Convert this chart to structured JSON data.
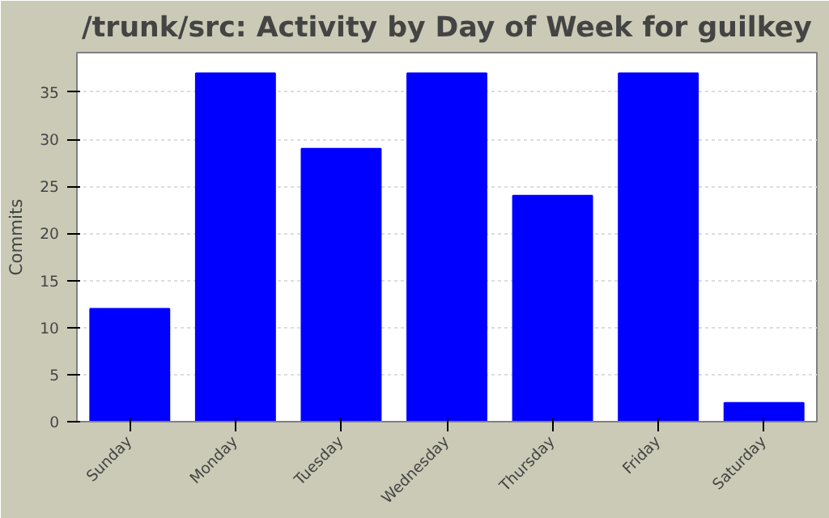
{
  "chart_data": {
    "type": "bar",
    "title": "/trunk/src: Activity by Day of Week for guilkey",
    "ylabel": "Commits",
    "categories": [
      "Sunday",
      "Monday",
      "Tuesday",
      "Wednesday",
      "Thursday",
      "Friday",
      "Saturday"
    ],
    "values": [
      12,
      37,
      29,
      37,
      24,
      37,
      2
    ],
    "color": "#0000ff",
    "ylim": [
      0,
      39.2
    ],
    "yticks": [
      0,
      5,
      10,
      15,
      20,
      25,
      30,
      35
    ],
    "grid": "y"
  }
}
